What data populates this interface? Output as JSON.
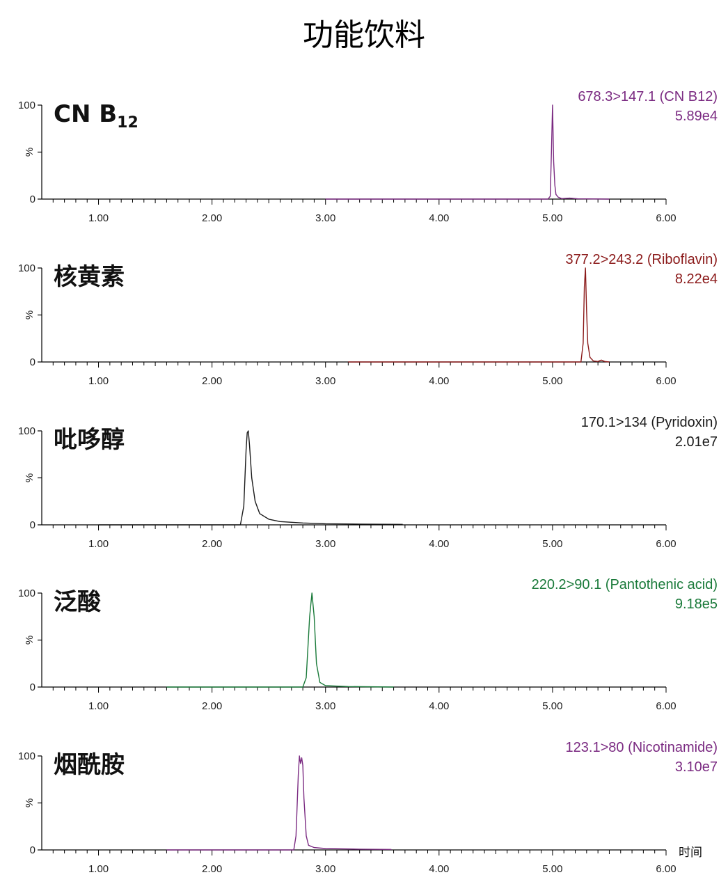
{
  "title": "功能饮料",
  "x_axis_unit": "时间",
  "chart_data": [
    {
      "type": "line",
      "compound_label": "CN B",
      "compound_subscript": "12",
      "transition": "678.3>147.1 (CN B12)",
      "intensity": "5.89e4",
      "color": "#7b2b82",
      "x_ticks": [
        "1.00",
        "2.00",
        "3.00",
        "4.00",
        "5.00",
        "6.00"
      ],
      "y_ticks": [
        "0",
        "%",
        "100"
      ],
      "xlim": [
        0.5,
        6.0
      ],
      "ylim": [
        0,
        100
      ],
      "x": [
        3.0,
        4.96,
        4.98,
        4.99,
        5.0,
        5.01,
        5.02,
        5.03,
        5.05,
        5.08,
        5.15,
        5.22,
        5.5
      ],
      "y": [
        0,
        0,
        3,
        50,
        100,
        40,
        15,
        5,
        2,
        0.5,
        1,
        0.3,
        0
      ]
    },
    {
      "type": "line",
      "compound_label": "核黄素",
      "compound_subscript": "",
      "transition": "377.2>243.2 (Riboflavin)",
      "intensity": "8.22e4",
      "color": "#8b1a1a",
      "x_ticks": [
        "1.00",
        "2.00",
        "3.00",
        "4.00",
        "5.00",
        "6.00"
      ],
      "y_ticks": [
        "0",
        "%",
        "100"
      ],
      "xlim": [
        0.5,
        6.0
      ],
      "ylim": [
        0,
        100
      ],
      "x": [
        3.2,
        5.25,
        5.27,
        5.28,
        5.29,
        5.3,
        5.31,
        5.33,
        5.36,
        5.4,
        5.43,
        5.46,
        5.5
      ],
      "y": [
        0,
        0,
        20,
        80,
        100,
        55,
        20,
        5,
        1,
        0.5,
        2,
        0.5,
        0
      ]
    },
    {
      "type": "line",
      "compound_label": "吡哆醇",
      "compound_subscript": "",
      "transition": "170.1>134 (Pyridoxin)",
      "intensity": "2.01e7",
      "color": "#1a1a1a",
      "x_ticks": [
        "1.00",
        "2.00",
        "3.00",
        "4.00",
        "5.00",
        "6.00"
      ],
      "y_ticks": [
        "0",
        "%",
        "100"
      ],
      "xlim": [
        0.5,
        6.0
      ],
      "ylim": [
        0,
        100
      ],
      "x": [
        1.0,
        2.25,
        2.28,
        2.3,
        2.31,
        2.32,
        2.33,
        2.35,
        2.38,
        2.42,
        2.5,
        2.6,
        2.8,
        3.0,
        3.3,
        3.68
      ],
      "y": [
        0,
        0,
        20,
        80,
        98,
        100,
        85,
        50,
        25,
        12,
        6,
        3.5,
        2,
        1.2,
        0.8,
        0.5
      ]
    },
    {
      "type": "line",
      "compound_label": "泛酸",
      "compound_subscript": "",
      "transition": "220.2>90.1 (Pantothenic acid)",
      "intensity": "9.18e5",
      "color": "#1a7a3a",
      "x_ticks": [
        "1.00",
        "2.00",
        "3.00",
        "4.00",
        "5.00",
        "6.00"
      ],
      "y_ticks": [
        "0",
        "%",
        "100"
      ],
      "xlim": [
        0.5,
        6.0
      ],
      "ylim": [
        0,
        100
      ],
      "x": [
        1.6,
        2.8,
        2.83,
        2.86,
        2.88,
        2.9,
        2.92,
        2.95,
        3.0,
        3.2,
        3.6
      ],
      "y": [
        0,
        0,
        10,
        75,
        100,
        75,
        25,
        5,
        1.5,
        0.5,
        0
      ]
    },
    {
      "type": "line",
      "compound_label": "烟酰胺",
      "compound_subscript": "",
      "transition": "123.1>80 (Nicotinamide)",
      "intensity": "3.10e7",
      "color": "#7b2b82",
      "x_ticks": [
        "1.00",
        "2.00",
        "3.00",
        "4.00",
        "5.00",
        "6.00"
      ],
      "y_ticks": [
        "0",
        "%",
        "100"
      ],
      "xlim": [
        0.5,
        6.0
      ],
      "ylim": [
        0,
        100
      ],
      "x": [
        1.6,
        2.72,
        2.74,
        2.76,
        2.77,
        2.78,
        2.79,
        2.8,
        2.81,
        2.83,
        2.85,
        2.9,
        3.0,
        3.3,
        3.58
      ],
      "y": [
        0,
        0,
        15,
        80,
        100,
        92,
        98,
        90,
        55,
        15,
        5,
        2.5,
        1.5,
        0.8,
        0.5
      ]
    }
  ]
}
